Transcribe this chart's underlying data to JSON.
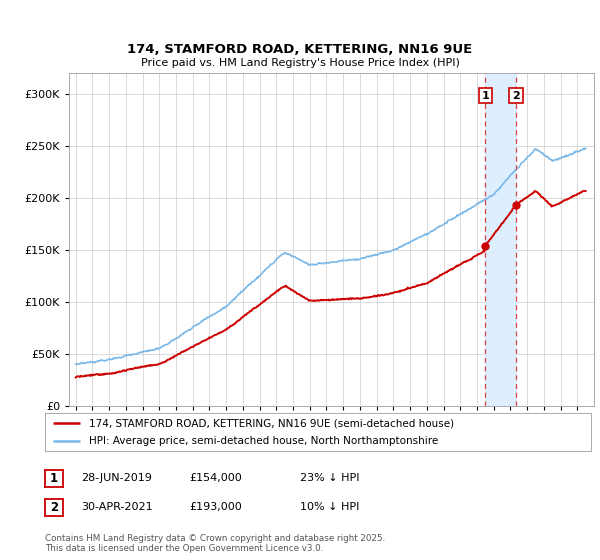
{
  "title_line1": "174, STAMFORD ROAD, KETTERING, NN16 9UE",
  "title_line2": "Price paid vs. HM Land Registry's House Price Index (HPI)",
  "ylim": [
    0,
    320000
  ],
  "yticks": [
    0,
    50000,
    100000,
    150000,
    200000,
    250000,
    300000
  ],
  "x_start_year": 1995,
  "x_end_year": 2025,
  "sale1_date": 2019.49,
  "sale1_price": 154000,
  "sale2_date": 2021.33,
  "sale2_price": 193000,
  "hpi_color": "#7ab8e8",
  "price_color": "#cc0000",
  "vline_color": "#dd4444",
  "shade_color": "#ddeeff",
  "legend_line1": "174, STAMFORD ROAD, KETTERING, NN16 9UE (semi-detached house)",
  "legend_line2": "HPI: Average price, semi-detached house, North Northamptonshire",
  "footnote": "Contains HM Land Registry data © Crown copyright and database right 2025.\nThis data is licensed under the Open Government Licence v3.0.",
  "bg_color": "#ffffff",
  "grid_color": "#cccccc"
}
